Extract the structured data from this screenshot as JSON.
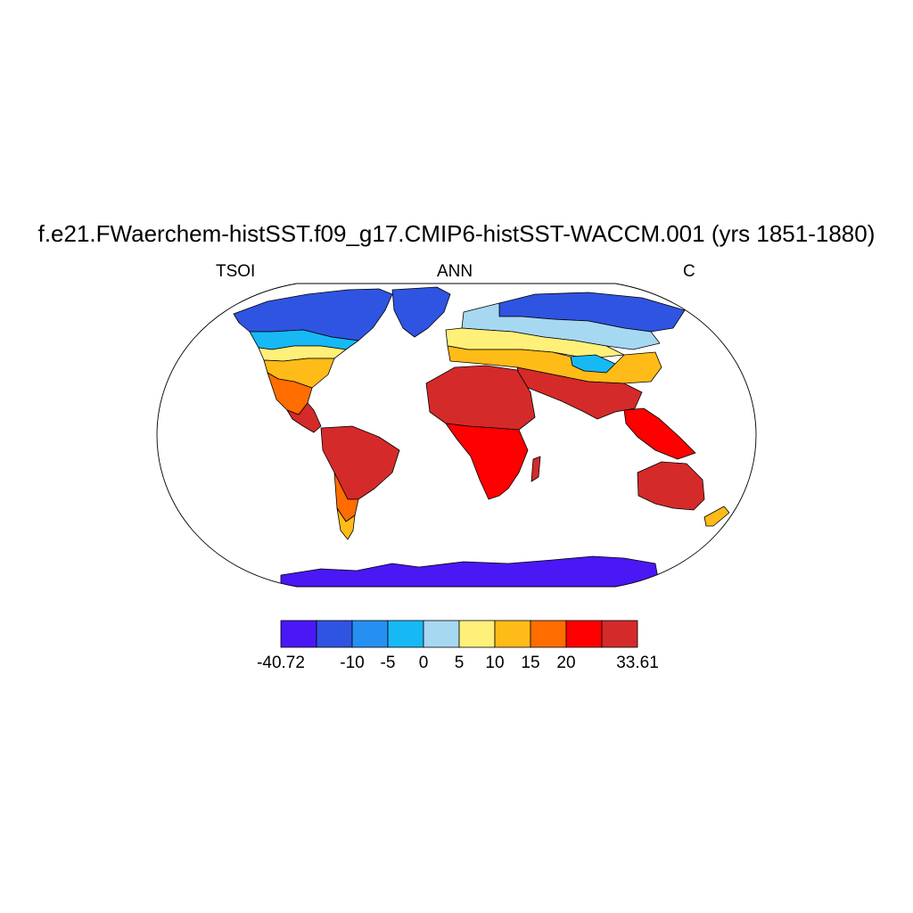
{
  "title": "f.e21.FWaerchem-histSST.f09_g17.CMIP6-histSST-WACCM.001 (yrs 1851-1880)",
  "left_label": "TSOI",
  "center_label": "ANN",
  "right_label": "C",
  "colorbar": {
    "colors": [
      "#4a17f5",
      "#2f54e2",
      "#2590f2",
      "#17b9f5",
      "#a6d8f2",
      "#fff07a",
      "#ffbb17",
      "#ff6d00",
      "#ff0000",
      "#d42a2a"
    ],
    "tick_labels": [
      {
        "text": "-40.72",
        "edge": 0
      },
      {
        "text": "-10",
        "edge": 2
      },
      {
        "text": "-5",
        "edge": 3
      },
      {
        "text": "0",
        "edge": 4
      },
      {
        "text": "5",
        "edge": 5
      },
      {
        "text": "10",
        "edge": 6
      },
      {
        "text": "15",
        "edge": 7
      },
      {
        "text": "20",
        "edge": 8
      },
      {
        "text": "33.61",
        "edge": 10
      }
    ]
  },
  "map_fill": {
    "arctic": "#2f54e2",
    "boreal": "#17b9f5",
    "cool": "#a6d8f2",
    "mild": "#fff07a",
    "warm": "#ffbb17",
    "hot": "#ff6d00",
    "tropical": "#ff0000",
    "desert": "#d42a2a",
    "antarctica": "#4a17f5"
  }
}
